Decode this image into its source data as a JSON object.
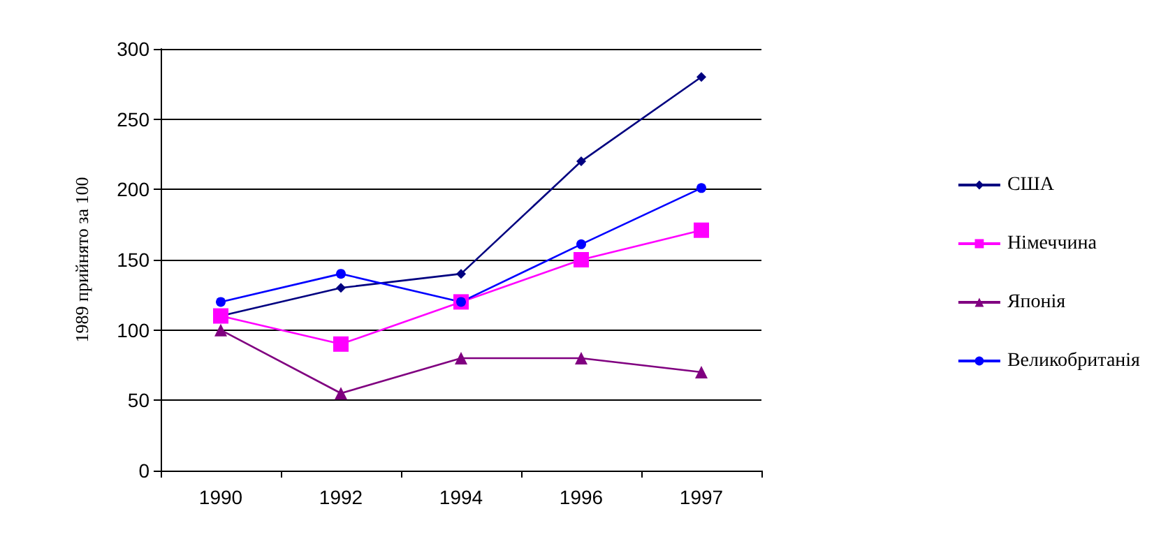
{
  "chart_data": {
    "type": "line",
    "ylabel": "1989 прийнято за 100",
    "categories": [
      "1990",
      "1992",
      "1994",
      "1996",
      "1997"
    ],
    "series": [
      {
        "name": "США",
        "color": "#000080",
        "marker": "diamond",
        "values": [
          110,
          130,
          140,
          220,
          280
        ]
      },
      {
        "name": "Німеччина",
        "color": "#ff00ff",
        "marker": "square",
        "values": [
          110,
          90,
          120,
          150,
          171
        ]
      },
      {
        "name": "Японія",
        "color": "#800080",
        "marker": "triangle",
        "values": [
          100,
          55,
          80,
          80,
          70
        ]
      },
      {
        "name": "Великобританія",
        "color": "#0000ff",
        "marker": "circle",
        "values": [
          120,
          140,
          120,
          161,
          201
        ]
      }
    ],
    "ylim": [
      0,
      300
    ],
    "yticks": [
      0,
      50,
      100,
      150,
      200,
      250,
      300
    ],
    "grid": "y",
    "legend": "right"
  }
}
